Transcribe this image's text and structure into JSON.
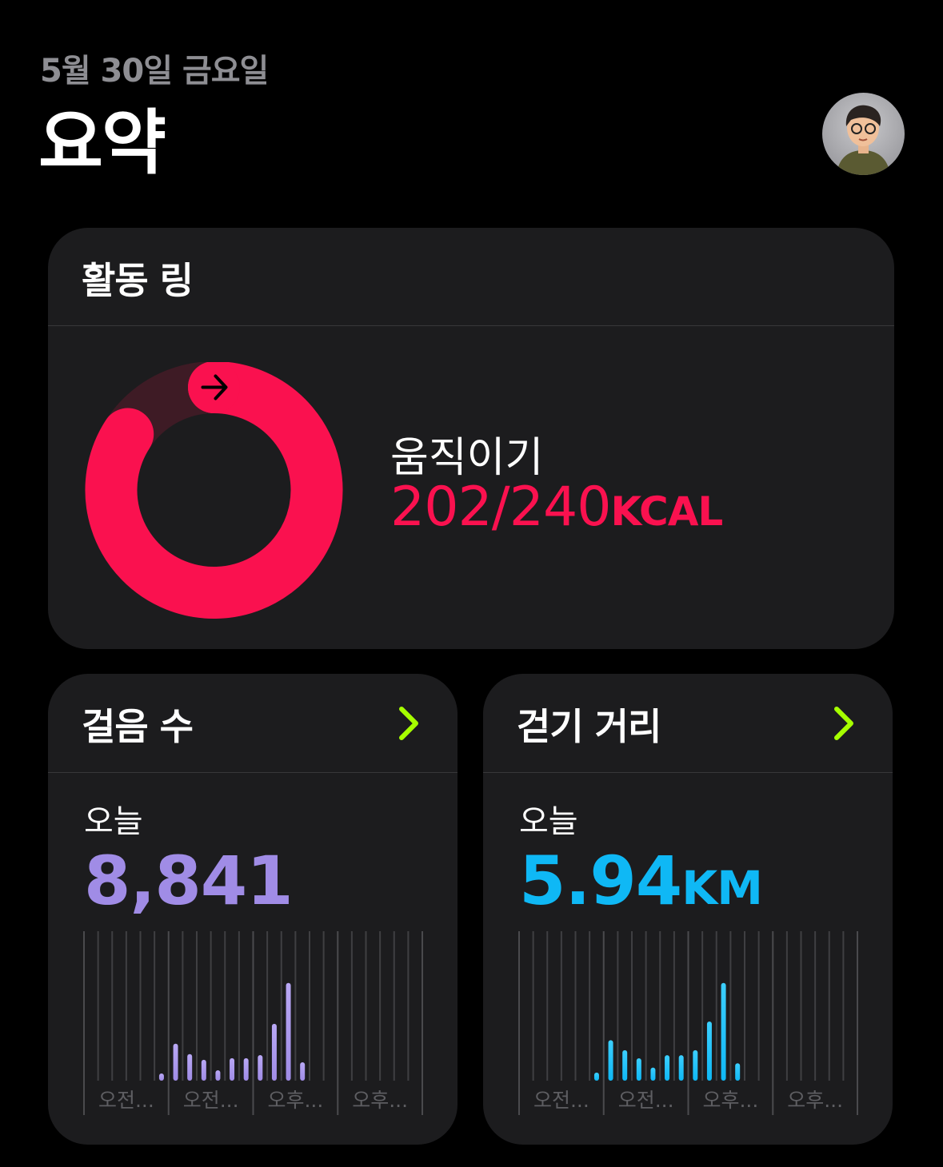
{
  "header": {
    "date": "5월 30일 금요일",
    "title": "요약"
  },
  "activity": {
    "title": "활동 링",
    "move_label": "움직이기",
    "move_current": 202,
    "move_goal": 240,
    "move_value_text": "202/240",
    "move_unit": "KCAL",
    "ring_color": "#fa114f",
    "track_color": "#3e1b25"
  },
  "steps": {
    "title": "걸음 수",
    "today_label": "오늘",
    "value": "8,841",
    "color": "#a08ce6",
    "chevron_color": "#a6ff00",
    "x_labels": [
      "오전...",
      "오전...",
      "오후...",
      "오후..."
    ]
  },
  "distance": {
    "title": "걷기 거리",
    "today_label": "오늘",
    "value": "5.94",
    "unit": "KM",
    "color": "#0fb8f5",
    "chevron_color": "#a6ff00",
    "x_labels": [
      "오전...",
      "오전...",
      "오후...",
      "오후..."
    ]
  },
  "chart_data": [
    {
      "type": "bar",
      "name": "steps",
      "x": [
        5,
        6,
        7,
        8,
        9,
        10,
        11,
        12,
        13,
        14,
        15
      ],
      "values": [
        185,
        945,
        680,
        535,
        265,
        575,
        575,
        655,
        1455,
        2500,
        470
      ],
      "xlim": [
        0,
        24
      ],
      "grid": true
    },
    {
      "type": "bar",
      "name": "distance",
      "x": [
        5,
        6,
        7,
        8,
        9,
        10,
        11,
        12,
        13,
        14,
        15
      ],
      "values": [
        0.13,
        0.65,
        0.49,
        0.36,
        0.21,
        0.41,
        0.41,
        0.49,
        0.95,
        1.57,
        0.28
      ],
      "xlim": [
        0,
        24
      ],
      "grid": true
    }
  ]
}
